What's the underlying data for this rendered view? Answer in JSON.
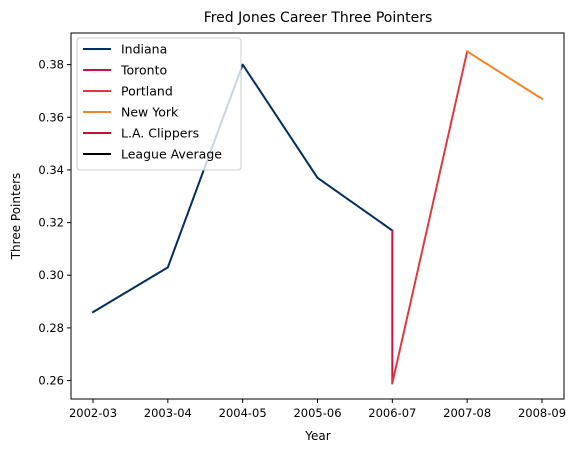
{
  "chart_data": {
    "type": "line",
    "title": "Fred Jones  Career Three Pointers",
    "xlabel": "Year",
    "ylabel": "Three Pointers",
    "categories": [
      "2002-03",
      "2003-04",
      "2004-05",
      "2005-06",
      "2006-07",
      "2007-08",
      "2008-09"
    ],
    "ylim": [
      0.253,
      0.392
    ],
    "yticks": [
      0.26,
      0.28,
      0.3,
      0.32,
      0.34,
      0.36,
      0.38
    ],
    "ytick_labels": [
      "0.26",
      "0.28",
      "0.30",
      "0.32",
      "0.34",
      "0.36",
      "0.38"
    ],
    "legend_position": "top-left",
    "grid": false,
    "series": [
      {
        "name": "Indiana",
        "color": "#002D62",
        "points": [
          [
            "2002-03",
            0.286
          ],
          [
            "2003-04",
            0.303
          ],
          [
            "2004-05",
            0.38
          ],
          [
            "2005-06",
            0.337
          ],
          [
            "2006-07",
            0.317
          ]
        ]
      },
      {
        "name": "Toronto",
        "color": "#CE1141",
        "points": [
          [
            "2006-07",
            0.317
          ],
          [
            "2006-07",
            0.259
          ]
        ]
      },
      {
        "name": "Portland",
        "color": "#E03A3E",
        "points": [
          [
            "2006-07",
            0.259
          ],
          [
            "2007-08",
            0.385
          ]
        ]
      },
      {
        "name": "New York",
        "color": "#F58426",
        "points": [
          [
            "2007-08",
            0.385
          ],
          [
            "2008-09",
            0.367
          ]
        ]
      },
      {
        "name": "L.A. Clippers",
        "color": "#C8102E",
        "points": []
      },
      {
        "name": "League Average",
        "color": "#000000",
        "points": []
      }
    ]
  }
}
